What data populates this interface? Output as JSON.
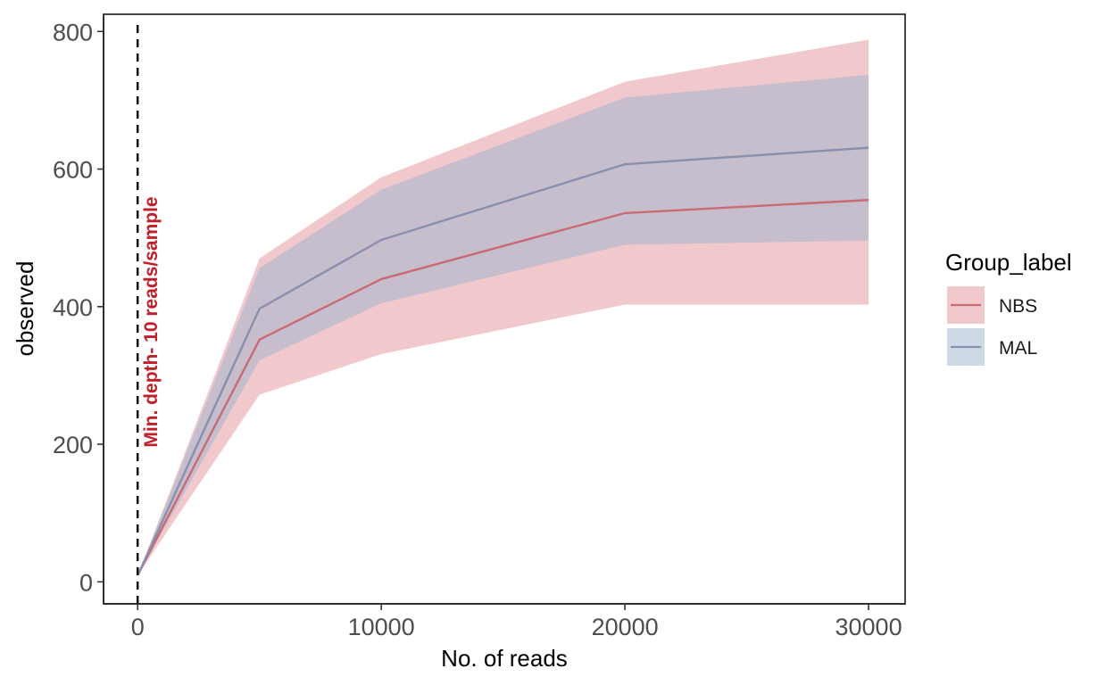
{
  "chart_data": {
    "type": "area",
    "xlabel": "No. of reads",
    "ylabel": "observed",
    "xlim": [
      -1400,
      31500
    ],
    "ylim": [
      -32,
      825
    ],
    "x_ticks": [
      0,
      10000,
      20000,
      30000
    ],
    "y_ticks": [
      0,
      200,
      400,
      600,
      800
    ],
    "x_tick_labels": [
      "0",
      "10000",
      "20000",
      "30000"
    ],
    "y_tick_labels": [
      "0",
      "200",
      "400",
      "600",
      "800"
    ],
    "grid": false,
    "legend": {
      "title": "Group_label",
      "position": "right",
      "entries": [
        "NBS",
        "MAL"
      ]
    },
    "vline": {
      "x": 0,
      "style": "dashed",
      "color": "#000000",
      "label": "Min. depth- 10 reads/sample",
      "label_color": "#c0202a",
      "label_y": 560
    },
    "x": [
      10,
      5000,
      10000,
      20000,
      30000
    ],
    "series": [
      {
        "name": "NBS",
        "color": "#c96a74",
        "fill": "#e7a5aa",
        "fill_opacity": 0.6,
        "values": [
          10,
          352,
          440,
          536,
          555
        ],
        "lower": [
          10,
          272,
          331,
          403,
          403
        ],
        "upper": [
          10,
          470,
          588,
          727,
          788
        ]
      },
      {
        "name": "MAL",
        "color": "#8a8fae",
        "fill": "#9bb3cc",
        "fill_opacity": 0.5,
        "values": [
          10,
          397,
          497,
          607,
          631
        ],
        "lower": [
          10,
          322,
          405,
          490,
          496
        ],
        "upper": [
          10,
          456,
          570,
          704,
          737
        ]
      }
    ]
  }
}
